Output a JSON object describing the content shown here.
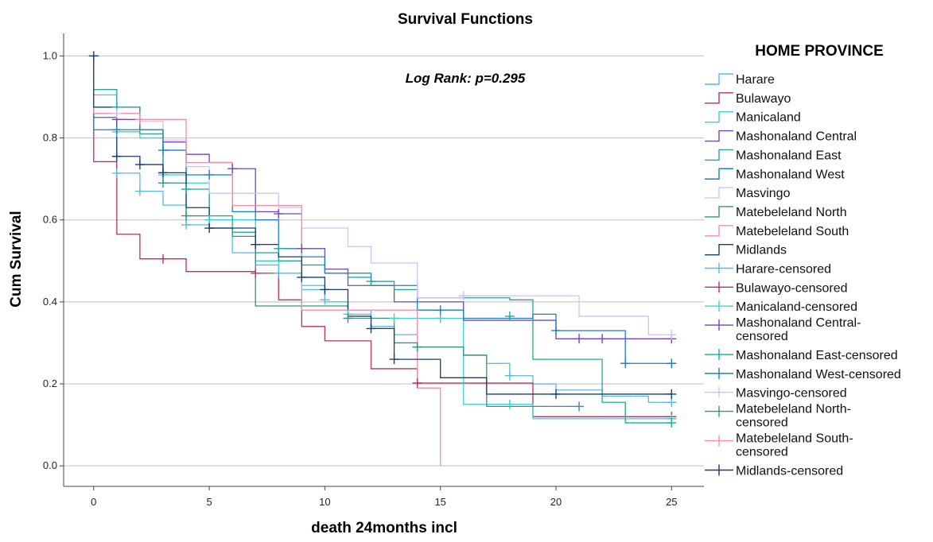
{
  "chart_data": {
    "type": "line",
    "step": true,
    "title": "Survival Functions",
    "xlabel": "death 24months incl",
    "ylabel": "Cum Survival",
    "xlim": [
      -1.3,
      26.4
    ],
    "ylim": [
      -0.05,
      1.055
    ],
    "x_ticks": [
      "0",
      "5",
      "10",
      "15",
      "20",
      "25"
    ],
    "x_tick_values": [
      0,
      5,
      10,
      15,
      20,
      25
    ],
    "y_ticks": [
      "0.0",
      "0.2",
      "0.4",
      "0.6",
      "0.8",
      "1.0"
    ],
    "y_tick_values": [
      0,
      0.2,
      0.4,
      0.6,
      0.8,
      1.0
    ],
    "grid": "horizontal",
    "annotation": "Log Rank: p=0.295",
    "legend_title": "HOME PROVINCE",
    "legend_position": "right",
    "series": [
      {
        "name": "Harare",
        "color": "#5bb8e6",
        "x": [
          0,
          0,
          1,
          2,
          3,
          4,
          5,
          6,
          7,
          8,
          9,
          10,
          11,
          12,
          13,
          14,
          16,
          17,
          18,
          19,
          20,
          22,
          24,
          25
        ],
        "y": [
          1.0,
          0.86,
          0.714,
          0.67,
          0.636,
          0.588,
          0.58,
          0.52,
          0.49,
          0.47,
          0.43,
          0.4,
          0.38,
          0.34,
          0.32,
          0.29,
          0.27,
          0.25,
          0.22,
          0.2,
          0.185,
          0.17,
          0.155,
          0.155
        ],
        "censored_x": [
          1,
          2,
          4,
          8,
          10,
          14,
          18,
          25
        ],
        "censored_y": [
          0.714,
          0.67,
          0.588,
          0.47,
          0.405,
          0.29,
          0.22,
          0.155
        ]
      },
      {
        "name": "Bulawayo",
        "color": "#b8325b",
        "x": [
          0,
          0,
          1,
          2,
          4,
          7,
          8,
          9,
          10,
          12,
          14,
          19,
          25
        ],
        "y": [
          1.0,
          0.742,
          0.565,
          0.505,
          0.474,
          0.47,
          0.405,
          0.34,
          0.305,
          0.237,
          0.202,
          0.12,
          0.12
        ],
        "censored_x": [
          3,
          7,
          14,
          25
        ],
        "censored_y": [
          0.505,
          0.47,
          0.202,
          0.12
        ]
      },
      {
        "name": "Manicaland",
        "color": "#36d3d3",
        "x": [
          0,
          0,
          1,
          2,
          3,
          4,
          5,
          7,
          8,
          9,
          10,
          11,
          12,
          13,
          14,
          15,
          16,
          18,
          19,
          25
        ],
        "y": [
          1.0,
          0.905,
          0.815,
          0.8,
          0.71,
          0.69,
          0.6,
          0.5,
          0.47,
          0.44,
          0.4,
          0.37,
          0.36,
          0.36,
          0.36,
          0.36,
          0.15,
          0.15,
          0.115,
          0.115
        ],
        "censored_x": [
          1,
          3,
          5,
          11,
          13,
          15,
          18,
          25
        ],
        "censored_y": [
          0.815,
          0.71,
          0.6,
          0.37,
          0.36,
          0.36,
          0.15,
          0.115
        ]
      },
      {
        "name": "Mashonaland Central",
        "color": "#7447b6",
        "x": [
          0,
          0,
          1,
          2,
          3,
          4,
          5,
          6,
          7,
          8,
          9,
          10,
          11,
          13,
          14,
          16,
          20,
          25
        ],
        "y": [
          1.0,
          0.85,
          0.845,
          0.82,
          0.79,
          0.76,
          0.74,
          0.725,
          0.62,
          0.615,
          0.53,
          0.48,
          0.44,
          0.4,
          0.4,
          0.355,
          0.31,
          0.31
        ],
        "censored_x": [
          1,
          6,
          8,
          9,
          21,
          22,
          25
        ],
        "censored_y": [
          0.845,
          0.725,
          0.615,
          0.53,
          0.31,
          0.31,
          0.31
        ]
      },
      {
        "name": "Mashonaland East",
        "color": "#22a996",
        "x": [
          0,
          0,
          1,
          2,
          3,
          4,
          5,
          6,
          7,
          8,
          9,
          10,
          11,
          12,
          13,
          14,
          15,
          16,
          18,
          19,
          22,
          23,
          25
        ],
        "y": [
          1.0,
          0.918,
          0.875,
          0.81,
          0.77,
          0.675,
          0.61,
          0.57,
          0.52,
          0.5,
          0.49,
          0.47,
          0.46,
          0.45,
          0.43,
          0.41,
          0.41,
          0.41,
          0.405,
          0.26,
          0.155,
          0.105,
          0.105
        ],
        "censored_x": [
          1,
          4,
          8,
          12,
          18,
          25
        ],
        "censored_y": [
          0.875,
          0.675,
          0.53,
          0.45,
          0.365,
          0.105
        ]
      },
      {
        "name": "Mashonaland West",
        "color": "#1f7dc8",
        "x": [
          0,
          0,
          1,
          3,
          4,
          5,
          6,
          7,
          8,
          9,
          10,
          12,
          14,
          16,
          19,
          20,
          23,
          25
        ],
        "y": [
          1.0,
          0.82,
          0.82,
          0.77,
          0.71,
          0.71,
          0.62,
          0.6,
          0.53,
          0.51,
          0.47,
          0.44,
          0.38,
          0.36,
          0.37,
          0.33,
          0.25,
          0.25
        ],
        "censored_x": [
          1,
          3,
          5,
          15,
          20,
          23,
          25
        ],
        "censored_y": [
          0.82,
          0.77,
          0.71,
          0.38,
          0.33,
          0.25,
          0.25
        ]
      },
      {
        "name": "Masvingo",
        "color": "#d1c1f3",
        "x": [
          0,
          0,
          1,
          2,
          3,
          4,
          5,
          7,
          8,
          9,
          10,
          11,
          12,
          14,
          16,
          21,
          24,
          25
        ],
        "y": [
          1.0,
          0.875,
          0.86,
          0.84,
          0.795,
          0.73,
          0.665,
          0.665,
          0.63,
          0.58,
          0.58,
          0.535,
          0.495,
          0.41,
          0.415,
          0.365,
          0.32,
          0.32
        ],
        "censored_x": [
          1,
          16,
          25
        ],
        "censored_y": [
          0.86,
          0.415,
          0.32
        ]
      },
      {
        "name": "Matebeleland North",
        "color": "#3b8f86",
        "x": [
          0,
          0,
          1,
          2,
          3,
          4,
          5,
          6,
          7,
          8,
          9,
          11,
          13,
          14,
          16,
          17,
          21
        ],
        "y": [
          1.0,
          0.875,
          0.875,
          0.82,
          0.69,
          0.61,
          0.58,
          0.56,
          0.39,
          0.39,
          0.39,
          0.36,
          0.3,
          0.29,
          0.27,
          0.145,
          0.145
        ],
        "censored_x": [
          3,
          4,
          11,
          14,
          21
        ],
        "censored_y": [
          0.69,
          0.61,
          0.36,
          0.29,
          0.145
        ]
      },
      {
        "name": "Matebeleland South",
        "color": "#f08fab",
        "x": [
          0,
          0,
          2,
          3,
          4,
          6,
          8,
          9,
          12,
          14,
          15,
          15
        ],
        "y": [
          1.0,
          0.86,
          0.845,
          0.845,
          0.74,
          0.635,
          0.635,
          0.38,
          0.38,
          0.19,
          0.19,
          0.0
        ],
        "censored_x": [
          2
        ],
        "censored_y": [
          0.845
        ]
      },
      {
        "name": "Midlands",
        "color": "#1a3d6b",
        "x": [
          0,
          0,
          1,
          2,
          3,
          4,
          5,
          7,
          8,
          9,
          10,
          11,
          12,
          13,
          15,
          17,
          20,
          25
        ],
        "y": [
          1.0,
          0.875,
          0.755,
          0.735,
          0.715,
          0.63,
          0.58,
          0.54,
          0.51,
          0.46,
          0.43,
          0.365,
          0.335,
          0.26,
          0.215,
          0.175,
          0.175,
          0.175
        ],
        "censored_x": [
          0,
          1,
          2,
          3,
          5,
          7,
          9,
          10,
          12,
          13,
          20,
          25
        ],
        "censored_y": [
          1.0,
          0.755,
          0.735,
          0.715,
          0.58,
          0.54,
          0.46,
          0.43,
          0.335,
          0.26,
          0.175,
          0.175
        ]
      }
    ],
    "legend_entries": [
      "Harare",
      "Bulawayo",
      "Manicaland",
      "Mashonaland Central",
      "Mashonaland East",
      "Mashonaland West",
      "Masvingo",
      "Matebeleland North",
      "Matebeleland South",
      "Midlands",
      "Harare-censored",
      "Bulawayo-censored",
      "Manicaland-censored",
      "Mashonaland Central-censored",
      "Mashonaland East-censored",
      "Mashonaland West-censored",
      "Masvingo-censored",
      "Matebeleland North-censored",
      "Matebeleland South-censored",
      "Midlands-censored"
    ]
  }
}
